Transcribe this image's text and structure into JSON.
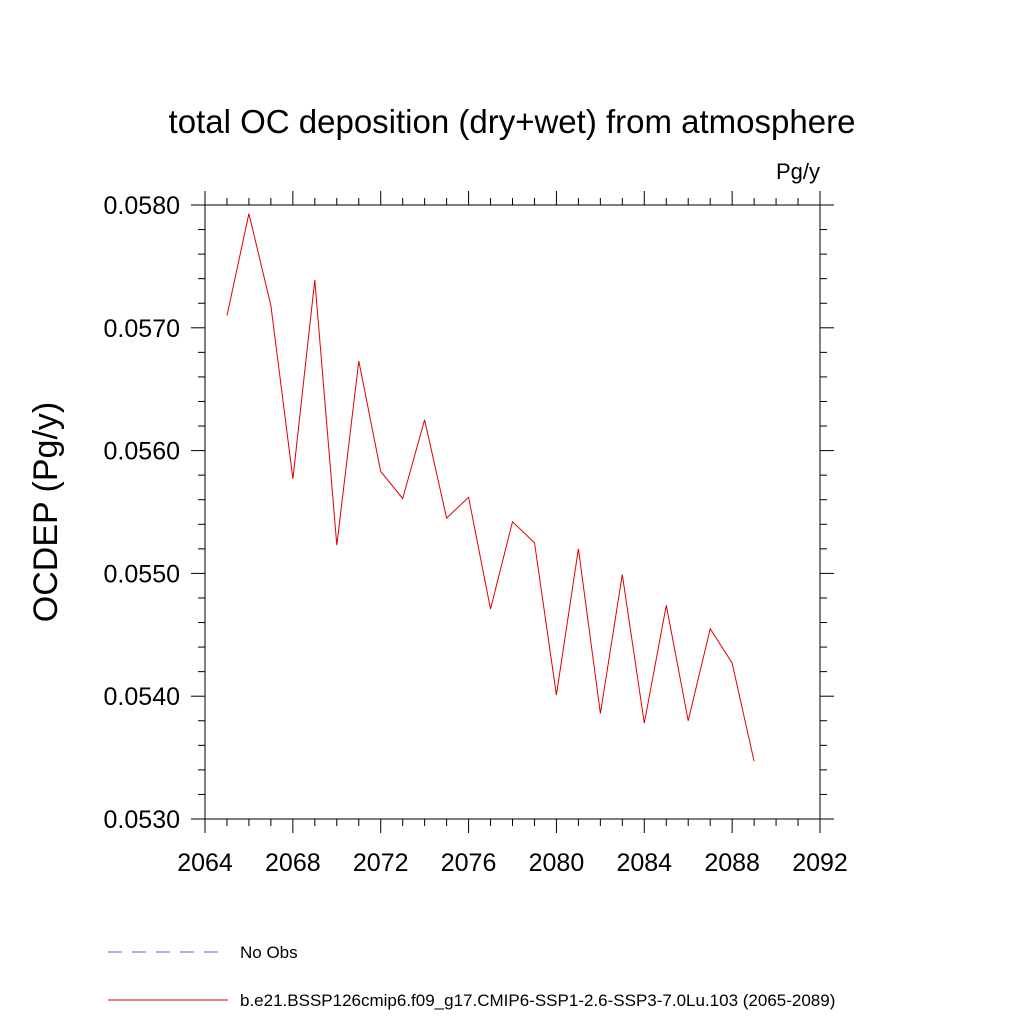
{
  "chart_data": {
    "type": "line",
    "title": "total OC deposition (dry+wet) from atmosphere",
    "units_label": "Pg/y",
    "ylabel": "OCDEP  (Pg/y)",
    "xlabel": "",
    "xlim": [
      2064,
      2092
    ],
    "ylim": [
      0.053,
      0.058
    ],
    "x_ticks": [
      "2064",
      "2068",
      "2072",
      "2076",
      "2080",
      "2084",
      "2088",
      "2092"
    ],
    "y_ticks": [
      "0.0530",
      "0.0540",
      "0.0550",
      "0.0560",
      "0.0570",
      "0.0580"
    ],
    "grid": false,
    "legend_position": "bottom",
    "series": [
      {
        "name": "b.e21.BSSP126cmip6.f09_g17.CMIP6-SSP1-2.6-SSP3-7.0Lu.103 (2065-2089)",
        "color": "#e00000",
        "style": "solid",
        "x": [
          2065,
          2066,
          2067,
          2068,
          2069,
          2070,
          2071,
          2072,
          2073,
          2074,
          2075,
          2076,
          2077,
          2078,
          2079,
          2080,
          2081,
          2082,
          2083,
          2084,
          2085,
          2086,
          2087,
          2088,
          2089
        ],
        "y": [
          0.0571,
          0.05793,
          0.05718,
          0.05577,
          0.05739,
          0.05523,
          0.05673,
          0.05583,
          0.05561,
          0.05625,
          0.05545,
          0.05562,
          0.05471,
          0.05542,
          0.05525,
          0.05401,
          0.0552,
          0.05386,
          0.05499,
          0.05378,
          0.05474,
          0.0538,
          0.05455,
          0.05427,
          0.05347
        ]
      }
    ],
    "legend": [
      {
        "label": "No Obs",
        "color": "#6a5acd",
        "style": "dashed"
      },
      {
        "label": "b.e21.BSSP126cmip6.f09_g17.CMIP6-SSP1-2.6-SSP3-7.0Lu.103 (2065-2089)",
        "color": "#e00000",
        "style": "solid"
      }
    ]
  }
}
